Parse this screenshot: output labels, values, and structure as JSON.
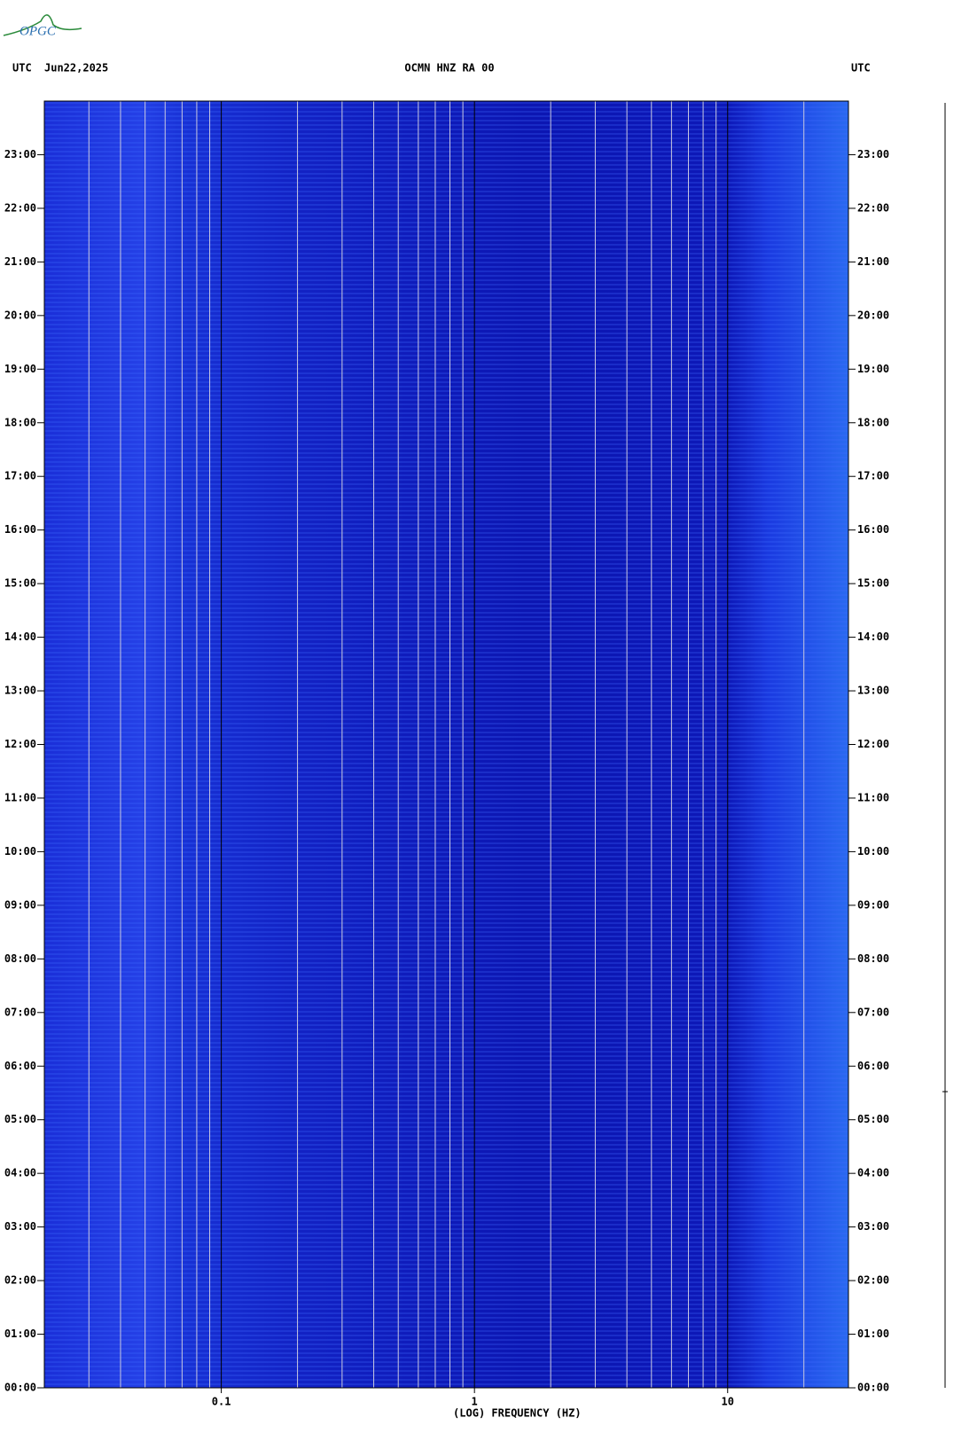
{
  "header": {
    "logo": "OPGC"
  },
  "chart_data": {
    "type": "spectrogram",
    "title": "OCMN HNZ RA 00",
    "left_label": "UTC",
    "date": "Jun22,2025",
    "right_label": "UTC",
    "xlabel": "(LOG) FREQUENCY (HZ)",
    "xlog": true,
    "xlim": [
      0.02,
      30
    ],
    "xticks": [
      0.1,
      1,
      10
    ],
    "xgrid": [
      0.03,
      0.04,
      0.05,
      0.06,
      0.07,
      0.08,
      0.09,
      0.2,
      0.3,
      0.4,
      0.5,
      0.6,
      0.7,
      0.8,
      0.9,
      2,
      3,
      4,
      5,
      6,
      7,
      8,
      9,
      20
    ],
    "ylim": [
      0,
      24
    ],
    "yticks": [
      {
        "value": 0,
        "label": "00:00"
      },
      {
        "value": 1,
        "label": "01:00"
      },
      {
        "value": 2,
        "label": "02:00"
      },
      {
        "value": 3,
        "label": "03:00"
      },
      {
        "value": 4,
        "label": "04:00"
      },
      {
        "value": 5,
        "label": "05:00"
      },
      {
        "value": 6,
        "label": "06:00"
      },
      {
        "value": 7,
        "label": "07:00"
      },
      {
        "value": 8,
        "label": "08:00"
      },
      {
        "value": 9,
        "label": "09:00"
      },
      {
        "value": 10,
        "label": "10:00"
      },
      {
        "value": 11,
        "label": "11:00"
      },
      {
        "value": 12,
        "label": "12:00"
      },
      {
        "value": 13,
        "label": "13:00"
      },
      {
        "value": 14,
        "label": "14:00"
      },
      {
        "value": 15,
        "label": "15:00"
      },
      {
        "value": 16,
        "label": "16:00"
      },
      {
        "value": 17,
        "label": "17:00"
      },
      {
        "value": 18,
        "label": "18:00"
      },
      {
        "value": 19,
        "label": "19:00"
      },
      {
        "value": 20,
        "label": "20:00"
      },
      {
        "value": 21,
        "label": "21:00"
      },
      {
        "value": 22,
        "label": "22:00"
      },
      {
        "value": 23,
        "label": "23:00"
      }
    ]
  }
}
